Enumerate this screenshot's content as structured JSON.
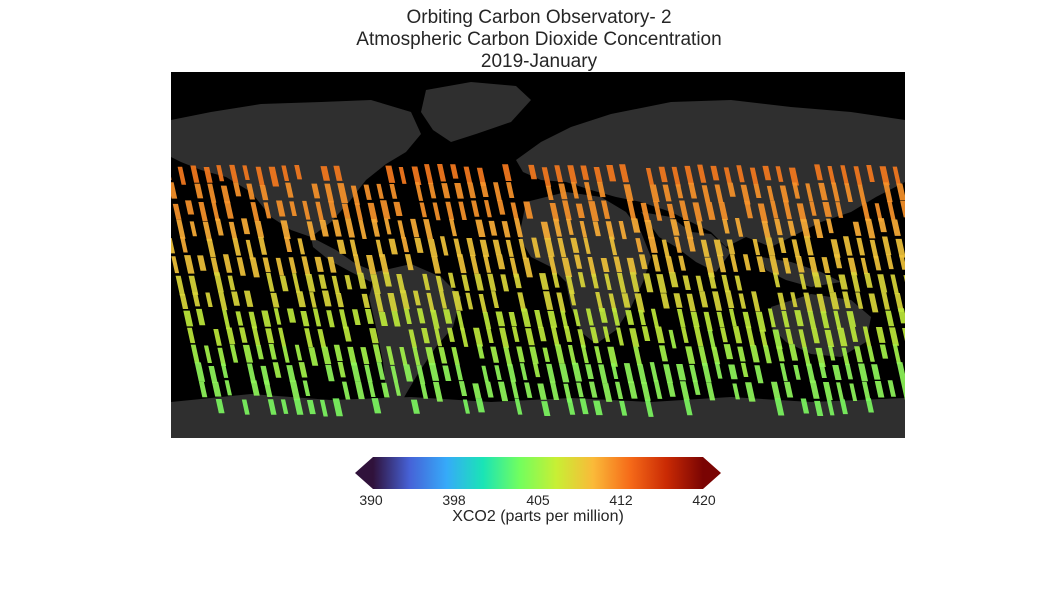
{
  "title": {
    "line1": "Orbiting Carbon Observatory- 2",
    "line2": "Atmospheric Carbon Dioxide Concentration",
    "line3": "2019-January"
  },
  "map": {
    "projection": "equirectangular",
    "background_color": "#000000",
    "land_color": "#2e2e2e",
    "data_shape": "diagonal satellite swaths of colored XCO2 retrievals"
  },
  "colorbar": {
    "label": "XCO2 (parts per million)",
    "ticks": [
      "390",
      "398",
      "405",
      "412",
      "420"
    ],
    "range": [
      390,
      420
    ],
    "extend": "both",
    "colormap": "turbo",
    "colors": [
      "#30123b",
      "#4662d7",
      "#36aaf9",
      "#1ae4b6",
      "#72fe5e",
      "#c8ef34",
      "#faba39",
      "#f66b19",
      "#ca2a04",
      "#7a0403"
    ]
  }
}
